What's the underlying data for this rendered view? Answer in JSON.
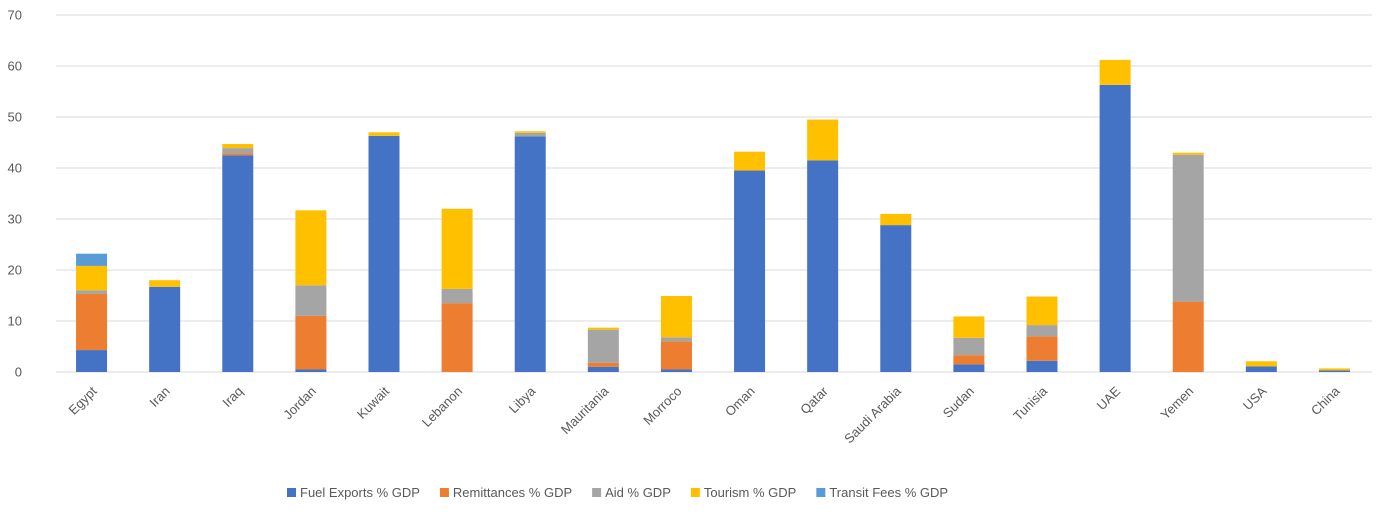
{
  "chart_data": {
    "type": "bar",
    "stacked": true,
    "title": "",
    "xlabel": "",
    "ylabel": "",
    "ylim": [
      0,
      70
    ],
    "yticks": [
      0,
      10,
      20,
      30,
      40,
      50,
      60,
      70
    ],
    "grid": true,
    "legend_position": "bottom",
    "categories": [
      "Egypt",
      "Iran",
      "Iraq",
      "Jordan",
      "Kuwait",
      "Lebanon",
      "Libya",
      "Mauritania",
      "Morroco",
      "Oman",
      "Qatar",
      "Saudi Arabia",
      "Sudan",
      "Tunisia",
      "UAE",
      "Yemen",
      "USA",
      "China"
    ],
    "series": [
      {
        "name": "Fuel Exports % GDP",
        "color": "#4472C4",
        "values": [
          4.3,
          16.7,
          42.5,
          0.5,
          46.3,
          0,
          46.2,
          1.0,
          0.5,
          39.5,
          41.5,
          28.8,
          1.5,
          2.2,
          56.3,
          0,
          1.1,
          0.3
        ]
      },
      {
        "name": "Remittances % GDP",
        "color": "#ED7D31",
        "values": [
          11.0,
          0,
          0.4,
          10.5,
          0,
          13.5,
          0,
          0.8,
          5.5,
          0,
          0,
          0,
          1.8,
          4.8,
          0,
          13.8,
          0,
          0
        ]
      },
      {
        "name": "Aid % GDP",
        "color": "#A5A5A5",
        "values": [
          0.7,
          0,
          1.0,
          6.0,
          0,
          2.8,
          0.7,
          6.5,
          0.8,
          0,
          0,
          0,
          3.4,
          2.2,
          0,
          28.8,
          0,
          0
        ]
      },
      {
        "name": "Tourism % GDP",
        "color": "#FFC000",
        "values": [
          4.8,
          1.3,
          0.8,
          14.7,
          0.7,
          15.7,
          0.3,
          0.4,
          8.1,
          3.7,
          8.0,
          2.2,
          4.2,
          5.6,
          4.9,
          0.4,
          1.0,
          0.4
        ]
      },
      {
        "name": "Transit Fees % GDP",
        "color": "#5B9BD5",
        "values": [
          2.4,
          0,
          0,
          0,
          0,
          0,
          0,
          0,
          0,
          0,
          0,
          0,
          0,
          0,
          0,
          0,
          0,
          0
        ]
      }
    ]
  }
}
